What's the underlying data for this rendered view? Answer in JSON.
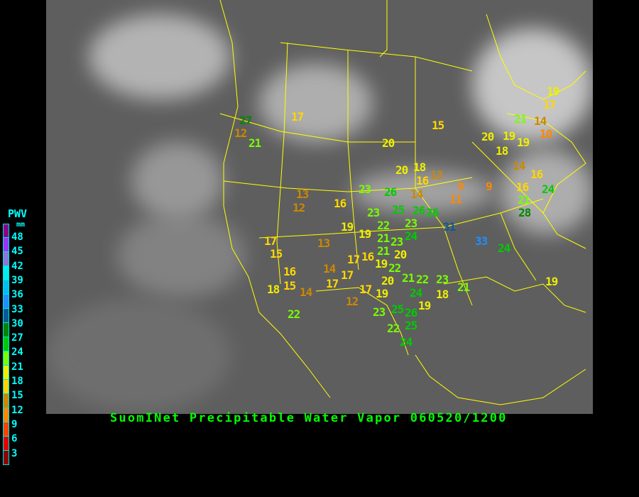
{
  "title": "SuomINet Precipitable Water Vapor 060520/1200",
  "legend": {
    "title": "PWV",
    "unit": "mm",
    "ticks": [
      "48",
      "45",
      "42",
      "39",
      "36",
      "33",
      "30",
      "27",
      "24",
      "21",
      "18",
      "15",
      "12",
      "9",
      "6",
      "3"
    ],
    "colors": [
      "#8b008b",
      "#9933ff",
      "#8877dd",
      "#00f0f0",
      "#00c0f0",
      "#1e90ff",
      "#0a5a9a",
      "#008800",
      "#00cc00",
      "#77ff00",
      "#eeee00",
      "#ffd700",
      "#cc8800",
      "#ff8800",
      "#ff4400",
      "#dd0000",
      "#8b0000"
    ]
  },
  "colors": {
    "background": "#000000",
    "borders": "#ffff00",
    "title": "#00ff00",
    "legend_text": "#00ffff"
  },
  "stations": [
    "27",
    "12",
    "21",
    "17",
    "15",
    "20",
    "20",
    "19",
    "21",
    "19",
    "17",
    "14",
    "10",
    "18",
    "19",
    "20",
    "18",
    "13",
    "16",
    "14",
    "9",
    "9",
    "11",
    "14",
    "16",
    "16",
    "21",
    "24",
    "28",
    "23",
    "26",
    "13",
    "12",
    "16",
    "23",
    "25",
    "26",
    "26",
    "31",
    "33",
    "24",
    "19",
    "19",
    "22",
    "23",
    "24",
    "21",
    "23",
    "21",
    "20",
    "17",
    "15",
    "13",
    "17",
    "16",
    "19",
    "22",
    "21",
    "22",
    "23",
    "16",
    "14",
    "17",
    "15",
    "14",
    "17",
    "20",
    "17",
    "19",
    "24",
    "18",
    "21",
    "19",
    "18",
    "12",
    "19",
    "22",
    "23",
    "25",
    "26",
    "22",
    "25",
    "24"
  ]
}
